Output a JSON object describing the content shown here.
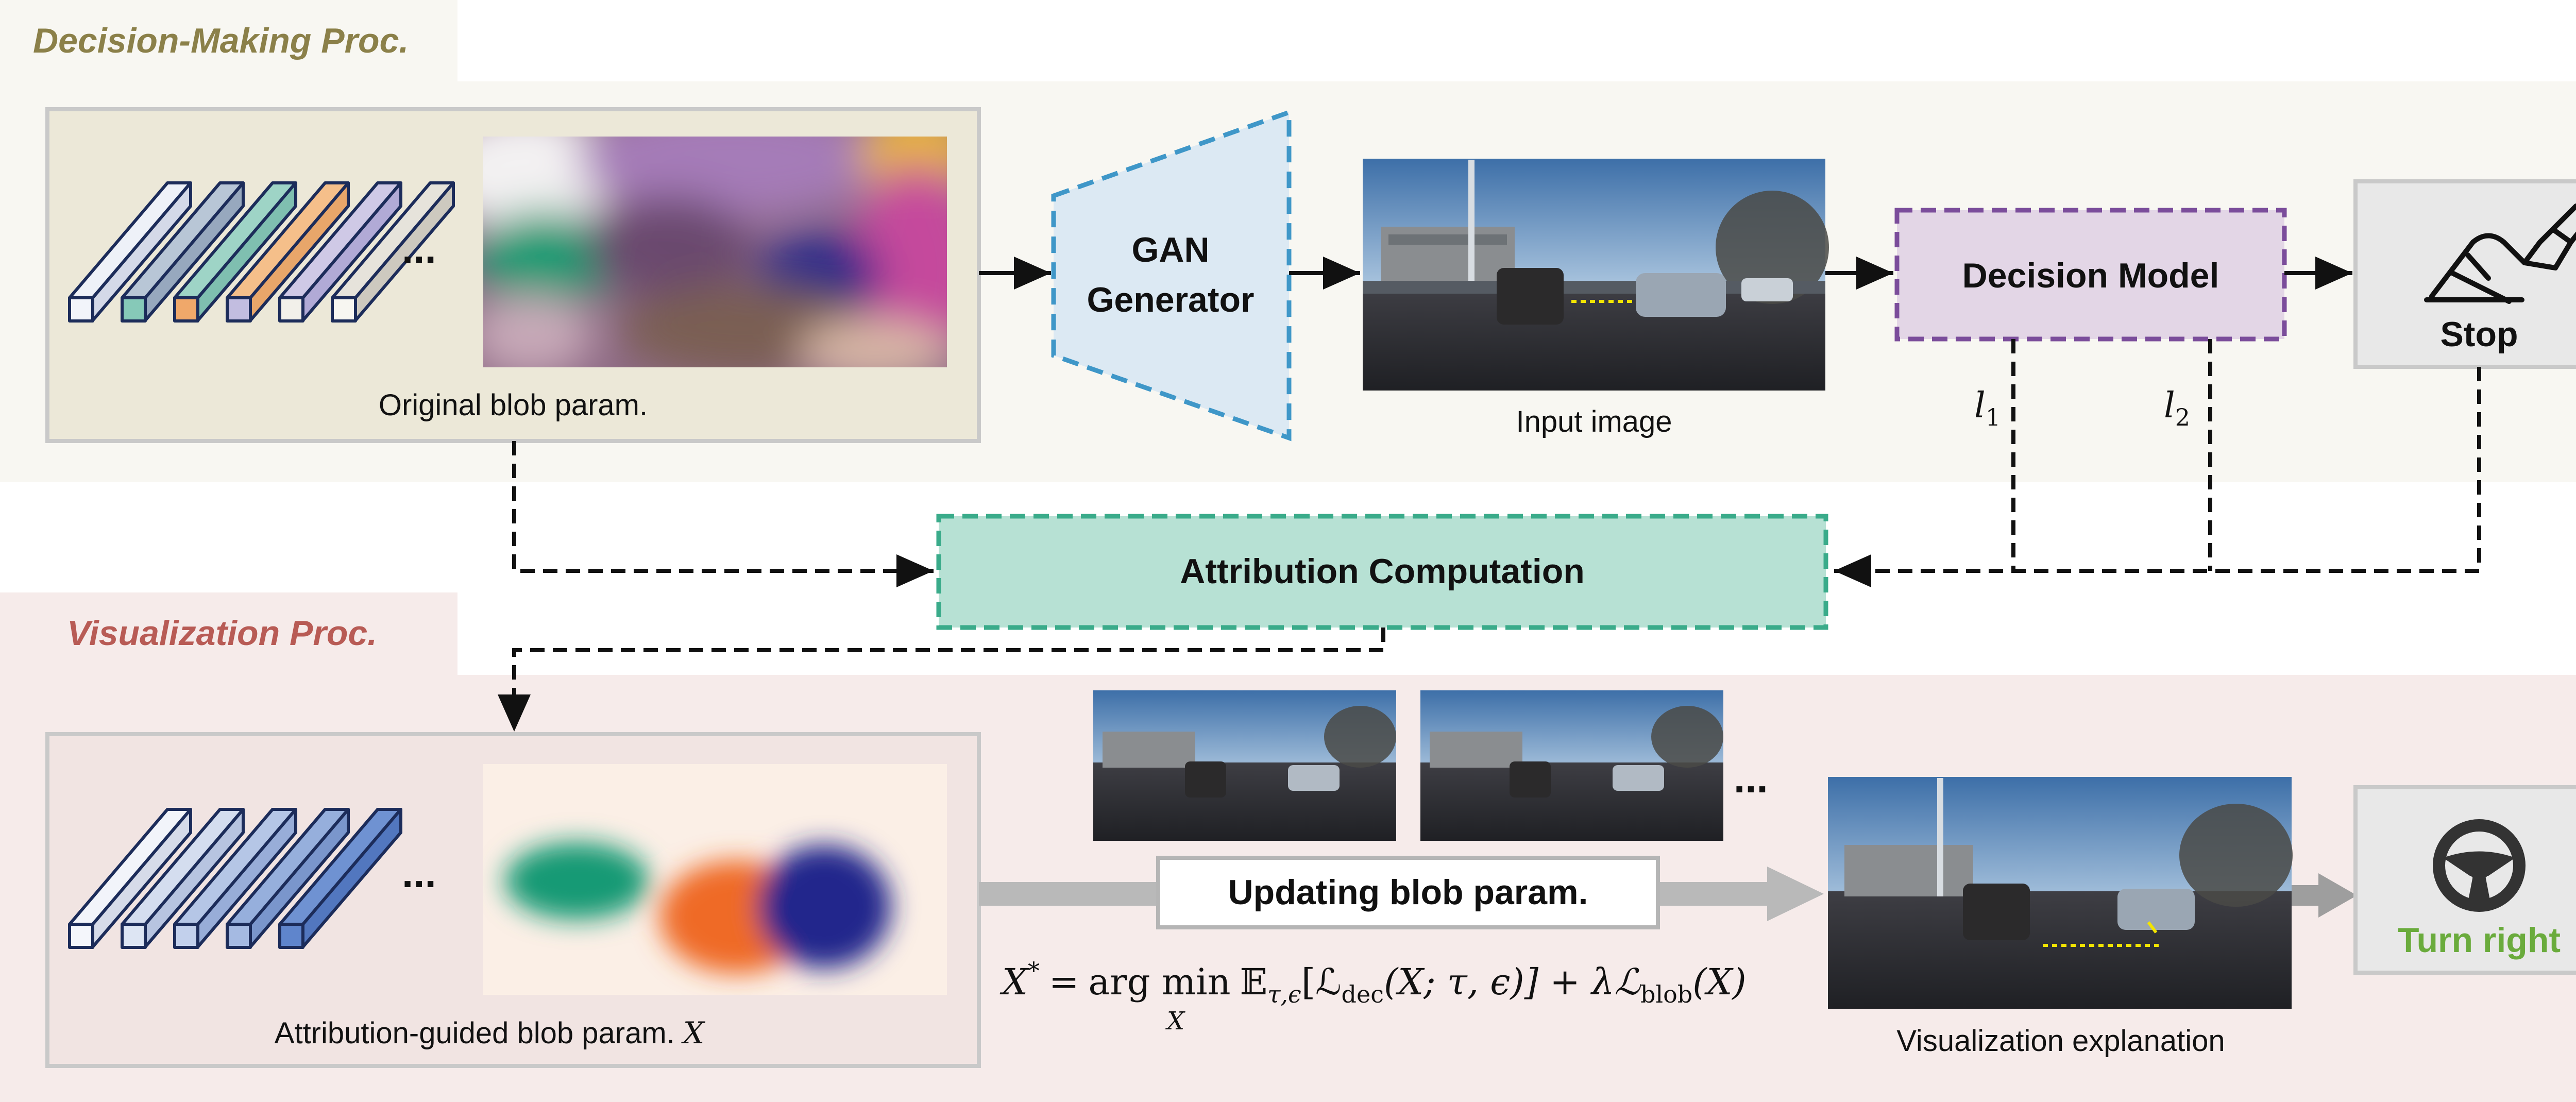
{
  "sections": {
    "top_title": "Decision-Making Proc.",
    "bottom_title": "Visualization Proc."
  },
  "blocks": {
    "original_blob_caption": "Original blob param.",
    "gan_line1": "GAN",
    "gan_line2": "Generator",
    "input_image_caption": "Input image",
    "decision_model": "Decision Model",
    "stop_label": "Stop",
    "l1_label": "l",
    "l1_sub": "1",
    "l2_label": "l",
    "l2_sub": "2",
    "attribution": "Attribution Computation",
    "attribution_blob_caption": "Attribution-guided blob param.",
    "attribution_blob_var": "X",
    "updating": "Updating blob param.",
    "visualization_caption": "Visualization explanation",
    "turn_label": "Turn right",
    "ellipsis": "..."
  },
  "formula": {
    "lhs": "X",
    "star": "*",
    "eq": "=",
    "op": "arg min",
    "op_sub": "X",
    "expect": "𝔼",
    "expect_sub": "τ,ϵ",
    "body1": "[ℒ",
    "dec_sub": "dec",
    "body2": "(X; τ, ϵ)] + λℒ",
    "blob_sub": "blob",
    "body3": "(X)"
  },
  "colors": {
    "top_band": "#f8f7f2",
    "bottom_band": "#f6ebea",
    "top_title": "#8b8049",
    "bottom_title": "#b85b55",
    "blob_box": "#ece8d8",
    "attr_blob_box": "#f1e4e2",
    "gan_fill": "#dce9f3",
    "gan_stroke": "#3f97c8",
    "decision_fill": "#e3d6e6",
    "decision_stroke": "#7b4d9b",
    "attribution_fill": "#b7e1d4",
    "attribution_stroke": "#3aab8a",
    "turn_green": "#6aab3c"
  },
  "icons": {
    "stop_icon": "brake-pedal-icon",
    "turn_icon": "steering-wheel-icon"
  }
}
